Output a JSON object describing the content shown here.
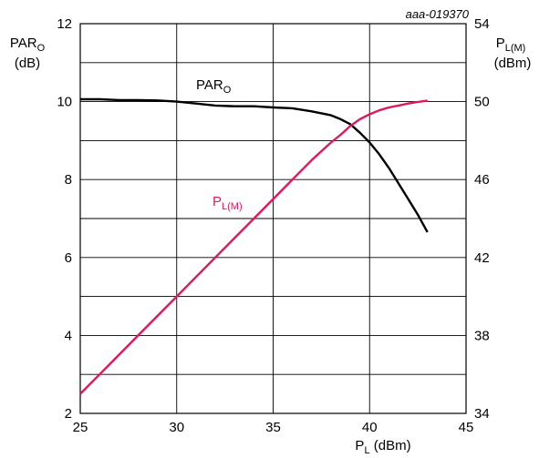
{
  "chart_data": {
    "type": "line",
    "code": "aaa-019370",
    "xlabel": {
      "main": "P",
      "sub": "L",
      "unit": " (dBm)"
    },
    "ylabel_left": {
      "main": "PAR",
      "sub": "O",
      "unit": "(dB)"
    },
    "ylabel_right": {
      "main": "P",
      "sub": "L(M)",
      "unit": "(dBm)"
    },
    "xlim": [
      25,
      45
    ],
    "ylim_left": [
      2,
      12
    ],
    "ylim_right": [
      34,
      54
    ],
    "x_ticks": [
      "25",
      "30",
      "35",
      "40",
      "45"
    ],
    "y_left_ticks": [
      "2",
      "4",
      "6",
      "8",
      "10",
      "12"
    ],
    "y_right_ticks": [
      "34",
      "38",
      "42",
      "46",
      "50",
      "54"
    ],
    "grid": true,
    "series": [
      {
        "name": "PAR",
        "name_sub": "O",
        "axis": "left",
        "color": "#000000",
        "x": [
          25,
          26,
          27,
          28,
          29,
          30,
          31,
          32,
          33,
          34,
          35,
          36,
          37,
          38,
          38.5,
          39,
          39.5,
          40,
          40.5,
          41,
          41.5,
          42,
          42.5,
          43
        ],
        "y": [
          10.06,
          10.06,
          10.04,
          10.04,
          10.03,
          10.0,
          9.95,
          9.9,
          9.88,
          9.88,
          9.85,
          9.83,
          9.75,
          9.65,
          9.55,
          9.42,
          9.2,
          8.95,
          8.65,
          8.3,
          7.9,
          7.5,
          7.1,
          6.65
        ]
      },
      {
        "name": "P",
        "name_sub": "L(M)",
        "axis": "right",
        "color": "#e0175d",
        "x": [
          25,
          26,
          27,
          28,
          29,
          30,
          31,
          32,
          33,
          34,
          35,
          36,
          37,
          38,
          38.5,
          39,
          39.5,
          40,
          40.5,
          41,
          41.5,
          42,
          42.5,
          43
        ],
        "y": [
          35.0,
          36.0,
          37.0,
          38.0,
          39.0,
          40.0,
          41.0,
          42.0,
          43.0,
          44.0,
          45.0,
          46.0,
          47.0,
          47.9,
          48.3,
          48.75,
          49.1,
          49.35,
          49.55,
          49.7,
          49.8,
          49.9,
          49.98,
          50.05
        ]
      }
    ]
  }
}
